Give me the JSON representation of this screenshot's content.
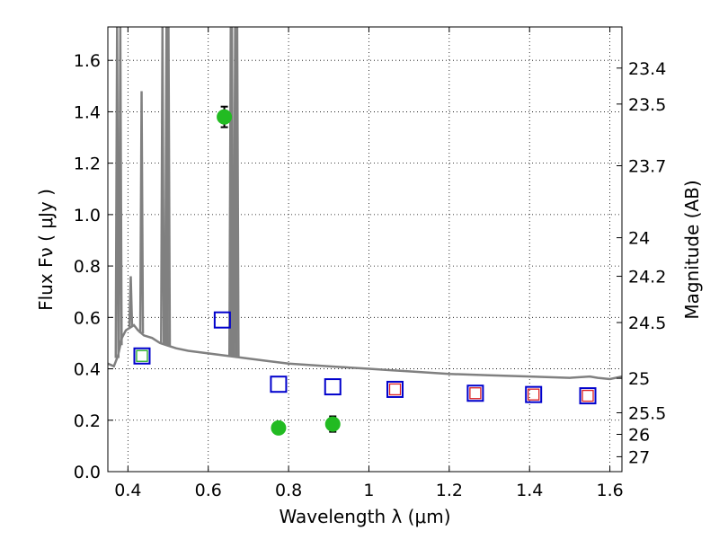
{
  "chart_data": {
    "type": "scatter",
    "xlabel": "Wavelength  λ (μm)",
    "ylabel": "Flux  Fν  ( μJy )",
    "y2label": "Magnitude (AB)",
    "xlim": [
      0.35,
      1.63
    ],
    "ylim": [
      0.0,
      1.73
    ],
    "grid": true,
    "x_ticks": [
      0.4,
      0.6,
      0.8,
      1.0,
      1.2,
      1.4,
      1.6
    ],
    "x_tick_labels": [
      "0.4",
      "0.6",
      "0.8",
      "1",
      "1.2",
      "1.4",
      "1.6"
    ],
    "y_ticks": [
      0.0,
      0.2,
      0.4,
      0.6,
      0.8,
      1.0,
      1.2,
      1.4,
      1.6
    ],
    "y_tick_labels": [
      "0.0",
      "0.2",
      "0.4",
      "0.6",
      "0.8",
      "1.0",
      "1.2",
      "1.4",
      "1.6"
    ],
    "right_ticks": [
      {
        "label": "23.4",
        "flux": 1.57
      },
      {
        "label": "23.5",
        "flux": 1.43
      },
      {
        "label": "23.7",
        "flux": 1.19
      },
      {
        "label": "24",
        "flux": 0.91
      },
      {
        "label": "24.2",
        "flux": 0.76
      },
      {
        "label": "24.5",
        "flux": 0.58
      },
      {
        "label": "25",
        "flux": 0.363
      },
      {
        "label": "25.5",
        "flux": 0.229
      },
      {
        "label": "26",
        "flux": 0.145
      },
      {
        "label": "27",
        "flux": 0.058
      }
    ],
    "series": [
      {
        "marker": "circle",
        "color": "#22bb22",
        "points": [
          {
            "x": 0.64,
            "y": 1.38,
            "err": 0.04
          },
          {
            "x": 0.775,
            "y": 0.17,
            "err": 0.02
          },
          {
            "x": 0.91,
            "y": 0.185,
            "err": 0.03
          }
        ]
      },
      {
        "marker": "square",
        "color": "#0000cc",
        "points": [
          {
            "x": 0.435,
            "y": 0.45
          },
          {
            "x": 0.635,
            "y": 0.59
          },
          {
            "x": 0.775,
            "y": 0.34
          },
          {
            "x": 0.91,
            "y": 0.33
          },
          {
            "x": 1.065,
            "y": 0.32
          },
          {
            "x": 1.265,
            "y": 0.305
          },
          {
            "x": 1.41,
            "y": 0.3
          },
          {
            "x": 1.545,
            "y": 0.295
          }
        ]
      },
      {
        "marker": "small-square",
        "color": "#22aa22",
        "points": [
          {
            "x": 0.435,
            "y": 0.45
          }
        ]
      },
      {
        "marker": "small-square",
        "color": "#dd2222",
        "points": [
          {
            "x": 1.065,
            "y": 0.32
          },
          {
            "x": 1.265,
            "y": 0.305
          },
          {
            "x": 1.41,
            "y": 0.3
          },
          {
            "x": 1.545,
            "y": 0.295
          }
        ]
      }
    ],
    "model_spectrum": {
      "color": "#808080",
      "continuum": [
        [
          0.35,
          0.42
        ],
        [
          0.365,
          0.41
        ],
        [
          0.375,
          0.45
        ],
        [
          0.385,
          0.52
        ],
        [
          0.395,
          0.55
        ],
        [
          0.405,
          0.56
        ],
        [
          0.415,
          0.57
        ],
        [
          0.425,
          0.55
        ],
        [
          0.44,
          0.53
        ],
        [
          0.46,
          0.52
        ],
        [
          0.48,
          0.5
        ],
        [
          0.5,
          0.49
        ],
        [
          0.52,
          0.48
        ],
        [
          0.55,
          0.47
        ],
        [
          0.6,
          0.46
        ],
        [
          0.65,
          0.45
        ],
        [
          0.7,
          0.44
        ],
        [
          0.75,
          0.43
        ],
        [
          0.8,
          0.42
        ],
        [
          0.85,
          0.415
        ],
        [
          0.9,
          0.41
        ],
        [
          0.95,
          0.405
        ],
        [
          1.0,
          0.4
        ],
        [
          1.05,
          0.395
        ],
        [
          1.1,
          0.39
        ],
        [
          1.2,
          0.38
        ],
        [
          1.3,
          0.375
        ],
        [
          1.4,
          0.37
        ],
        [
          1.5,
          0.365
        ],
        [
          1.55,
          0.37
        ],
        [
          1.57,
          0.365
        ],
        [
          1.6,
          0.36
        ],
        [
          1.63,
          0.37
        ]
      ],
      "lines": [
        {
          "x": 0.373,
          "peak": 1.75
        },
        {
          "x": 0.381,
          "peak": 1.75
        },
        {
          "x": 0.407,
          "peak": 0.76
        },
        {
          "x": 0.434,
          "peak": 1.48
        },
        {
          "x": 0.486,
          "peak": 1.75
        },
        {
          "x": 0.496,
          "peak": 1.75
        },
        {
          "x": 0.501,
          "peak": 1.75
        },
        {
          "x": 0.656,
          "peak": 1.75
        },
        {
          "x": 0.659,
          "peak": 1.75
        },
        {
          "x": 0.667,
          "peak": 1.75
        },
        {
          "x": 0.672,
          "peak": 1.75
        }
      ]
    }
  }
}
